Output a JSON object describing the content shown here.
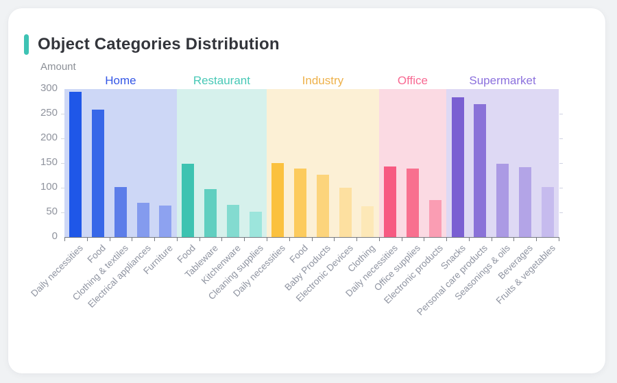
{
  "card": {
    "title": "Object Categories Distribution",
    "title_accent_color": "#3ec3b4"
  },
  "chart_data": {
    "type": "bar",
    "title": "Object Categories Distribution",
    "xlabel": "",
    "ylabel": "Amount",
    "ylim": [
      0,
      300
    ],
    "y_ticks": [
      0,
      50,
      100,
      150,
      200,
      250,
      300
    ],
    "grid": false,
    "legend_position": "top-inside-bands",
    "axis_color": "#75797f",
    "y_label_color": "#8f939d",
    "x_label_color": "#8e93a0",
    "groups": [
      {
        "name": "Home",
        "label_color": "#3356e6",
        "band_color": "#cdd7f6",
        "items": [
          {
            "label": "Daily necessities",
            "value": 295,
            "color": "#1f57e8"
          },
          {
            "label": "Food",
            "value": 258,
            "color": "#3767e8"
          },
          {
            "label": "Clothing & textiles",
            "value": 102,
            "color": "#5c7de9"
          },
          {
            "label": "Electrical appliances",
            "value": 69,
            "color": "#849bee"
          },
          {
            "label": "Furniture",
            "value": 64,
            "color": "#8da2f0"
          }
        ]
      },
      {
        "name": "Restaurant",
        "label_color": "#47c8b6",
        "band_color": "#d6f1ec",
        "items": [
          {
            "label": "Food",
            "value": 148,
            "color": "#3dc3b1"
          },
          {
            "label": "Tableware",
            "value": 97,
            "color": "#60cfc0"
          },
          {
            "label": "Kitchenware",
            "value": 65,
            "color": "#83dbd0"
          },
          {
            "label": "Cleaning supplies",
            "value": 51,
            "color": "#9ce5dc"
          }
        ]
      },
      {
        "name": "Industry",
        "label_color": "#eeb14a",
        "band_color": "#fcf0d5",
        "items": [
          {
            "label": "Daily necessities",
            "value": 150,
            "color": "#fbc13e"
          },
          {
            "label": "Food",
            "value": 139,
            "color": "#fccb5d"
          },
          {
            "label": "Baby Products",
            "value": 127,
            "color": "#fcd47b"
          },
          {
            "label": "Electronic Devices",
            "value": 100,
            "color": "#fde0a0"
          },
          {
            "label": "Clothing",
            "value": 63,
            "color": "#fde8b7"
          }
        ]
      },
      {
        "name": "Office",
        "label_color": "#f86992",
        "band_color": "#fbdae3",
        "items": [
          {
            "label": "Daily necessities",
            "value": 143,
            "color": "#f75a82"
          },
          {
            "label": "Office supplies",
            "value": 139,
            "color": "#f8708f"
          },
          {
            "label": "Electronic products",
            "value": 75,
            "color": "#fa9db3"
          }
        ]
      },
      {
        "name": "Supermarket",
        "label_color": "#8b70dd",
        "band_color": "#ded9f4",
        "items": [
          {
            "label": "Snacks",
            "value": 284,
            "color": "#7a5fd2"
          },
          {
            "label": "Personal care products",
            "value": 270,
            "color": "#8a72d8"
          },
          {
            "label": "Seasonings & oils",
            "value": 149,
            "color": "#ab9ae4"
          },
          {
            "label": "Beverages",
            "value": 141,
            "color": "#b3a4e7"
          },
          {
            "label": "Fruits & vegetables",
            "value": 102,
            "color": "#c6bbee"
          }
        ]
      }
    ]
  }
}
